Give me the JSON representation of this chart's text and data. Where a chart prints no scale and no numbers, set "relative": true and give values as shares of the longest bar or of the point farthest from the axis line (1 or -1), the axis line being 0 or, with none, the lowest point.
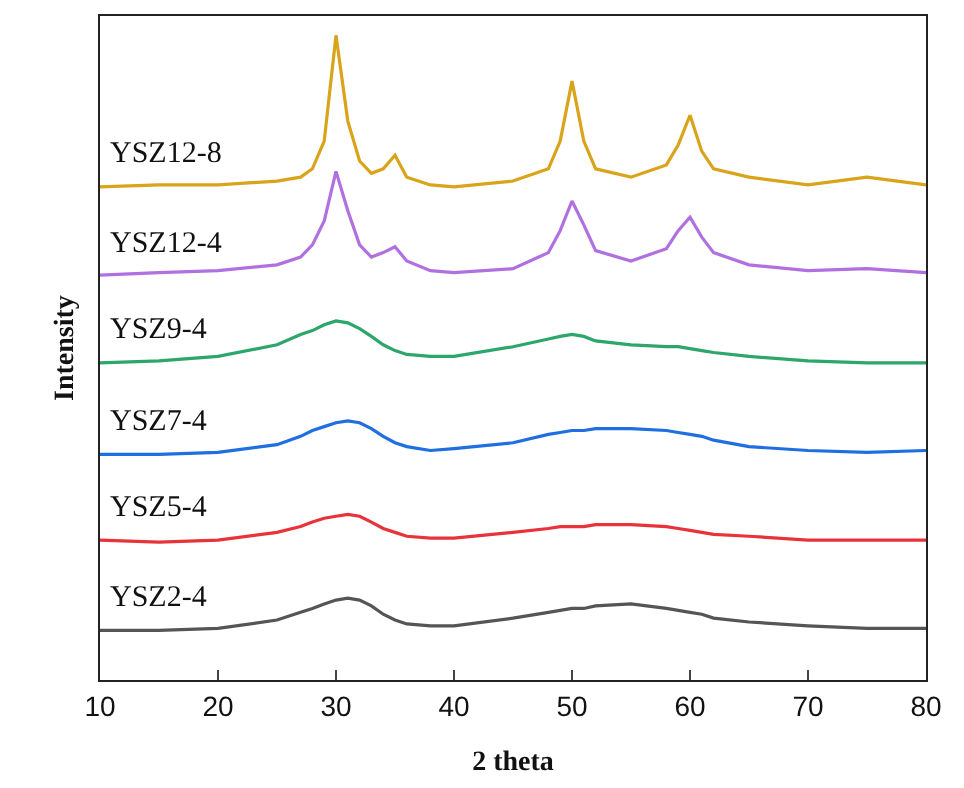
{
  "chart_data": {
    "type": "line",
    "xlabel": "2 theta",
    "ylabel": "Intensity",
    "relative": true,
    "xlim": [
      10,
      80
    ],
    "xticks": [
      10,
      20,
      30,
      40,
      50,
      60,
      70,
      80
    ],
    "legend": false,
    "marker": "none",
    "line_style": "solid",
    "x": [
      10,
      15,
      20,
      25,
      27,
      28,
      29,
      30,
      31,
      32,
      33,
      34,
      35,
      36,
      38,
      40,
      45,
      48,
      49,
      50,
      51,
      52,
      55,
      58,
      59,
      60,
      61,
      62,
      65,
      70,
      75,
      80
    ],
    "series": [
      {
        "name": "YSZ12-8",
        "color": "#d9a31a",
        "values": [
          0.765,
          0.768,
          0.768,
          0.774,
          0.78,
          0.793,
          0.836,
          1.0,
          0.867,
          0.805,
          0.786,
          0.793,
          0.814,
          0.78,
          0.768,
          0.765,
          0.774,
          0.793,
          0.836,
          0.929,
          0.836,
          0.793,
          0.78,
          0.799,
          0.83,
          0.876,
          0.82,
          0.793,
          0.78,
          0.768,
          0.78,
          0.768
        ]
      },
      {
        "name": "YSZ12-4",
        "color": "#b070e0",
        "values": [
          0.628,
          0.632,
          0.635,
          0.644,
          0.656,
          0.675,
          0.712,
          0.789,
          0.728,
          0.675,
          0.656,
          0.663,
          0.672,
          0.65,
          0.635,
          0.632,
          0.638,
          0.663,
          0.697,
          0.743,
          0.706,
          0.666,
          0.65,
          0.669,
          0.697,
          0.718,
          0.687,
          0.663,
          0.644,
          0.635,
          0.638,
          0.632
        ]
      },
      {
        "name": "YSZ9-4",
        "color": "#2ca66a",
        "values": [
          0.492,
          0.495,
          0.502,
          0.52,
          0.536,
          0.542,
          0.551,
          0.557,
          0.554,
          0.545,
          0.533,
          0.52,
          0.511,
          0.505,
          0.502,
          0.502,
          0.517,
          0.529,
          0.533,
          0.536,
          0.533,
          0.526,
          0.52,
          0.517,
          0.517,
          0.514,
          0.511,
          0.508,
          0.502,
          0.495,
          0.492,
          0.492
        ]
      },
      {
        "name": "YSZ7-4",
        "color": "#1f6fe0",
        "values": [
          0.35,
          0.35,
          0.353,
          0.365,
          0.378,
          0.387,
          0.393,
          0.399,
          0.402,
          0.399,
          0.39,
          0.378,
          0.368,
          0.362,
          0.356,
          0.359,
          0.368,
          0.381,
          0.384,
          0.387,
          0.387,
          0.39,
          0.39,
          0.387,
          0.384,
          0.381,
          0.378,
          0.372,
          0.362,
          0.356,
          0.353,
          0.356
        ]
      },
      {
        "name": "YSZ5-4",
        "color": "#e8333a",
        "values": [
          0.217,
          0.214,
          0.217,
          0.229,
          0.238,
          0.245,
          0.251,
          0.254,
          0.257,
          0.254,
          0.245,
          0.235,
          0.229,
          0.223,
          0.22,
          0.22,
          0.229,
          0.235,
          0.238,
          0.238,
          0.238,
          0.241,
          0.241,
          0.238,
          0.235,
          0.232,
          0.229,
          0.226,
          0.223,
          0.217,
          0.217,
          0.217
        ]
      },
      {
        "name": "YSZ2-4",
        "color": "#555555",
        "values": [
          0.077,
          0.077,
          0.08,
          0.093,
          0.105,
          0.111,
          0.118,
          0.124,
          0.127,
          0.124,
          0.115,
          0.102,
          0.093,
          0.087,
          0.084,
          0.084,
          0.096,
          0.105,
          0.108,
          0.111,
          0.111,
          0.115,
          0.118,
          0.111,
          0.108,
          0.105,
          0.102,
          0.096,
          0.09,
          0.084,
          0.08,
          0.08
        ]
      }
    ]
  }
}
